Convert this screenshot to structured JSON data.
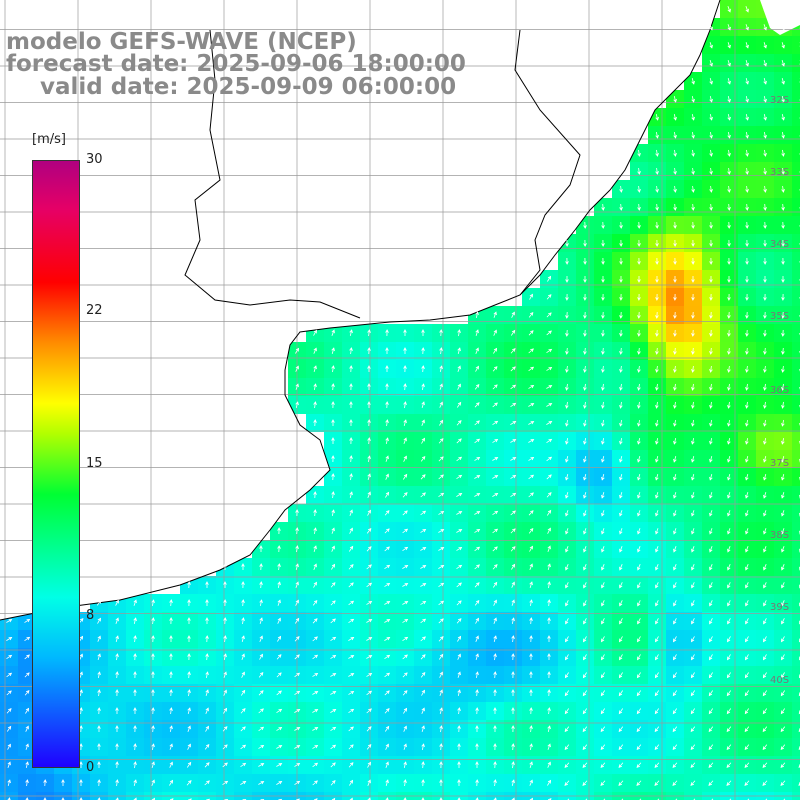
{
  "header": {
    "line1": "modelo GEFS-WAVE (NCEP)",
    "line2": "forecast date: 2025-09-06 18:00:00",
    "line3": "valid date: 2025-09-09 06:00:00"
  },
  "colorbar": {
    "unit": "[m/s]",
    "ticks": [
      "30",
      "22",
      "15",
      "8",
      "0"
    ],
    "range": [
      0,
      30
    ],
    "colors": [
      "#1f00ff",
      "#00b8ff",
      "#00ffe6",
      "#00ff33",
      "#ffff00",
      "#ff8c00",
      "#ff0000",
      "#b00080"
    ]
  },
  "map": {
    "lat_labels": [
      "32S",
      "33S",
      "34S",
      "35S",
      "36S",
      "37S",
      "38S",
      "39S",
      "40S"
    ],
    "land_color": "#ffffff",
    "grid_color": "#9a9a9a",
    "arrow_color": "#ffffff"
  }
}
